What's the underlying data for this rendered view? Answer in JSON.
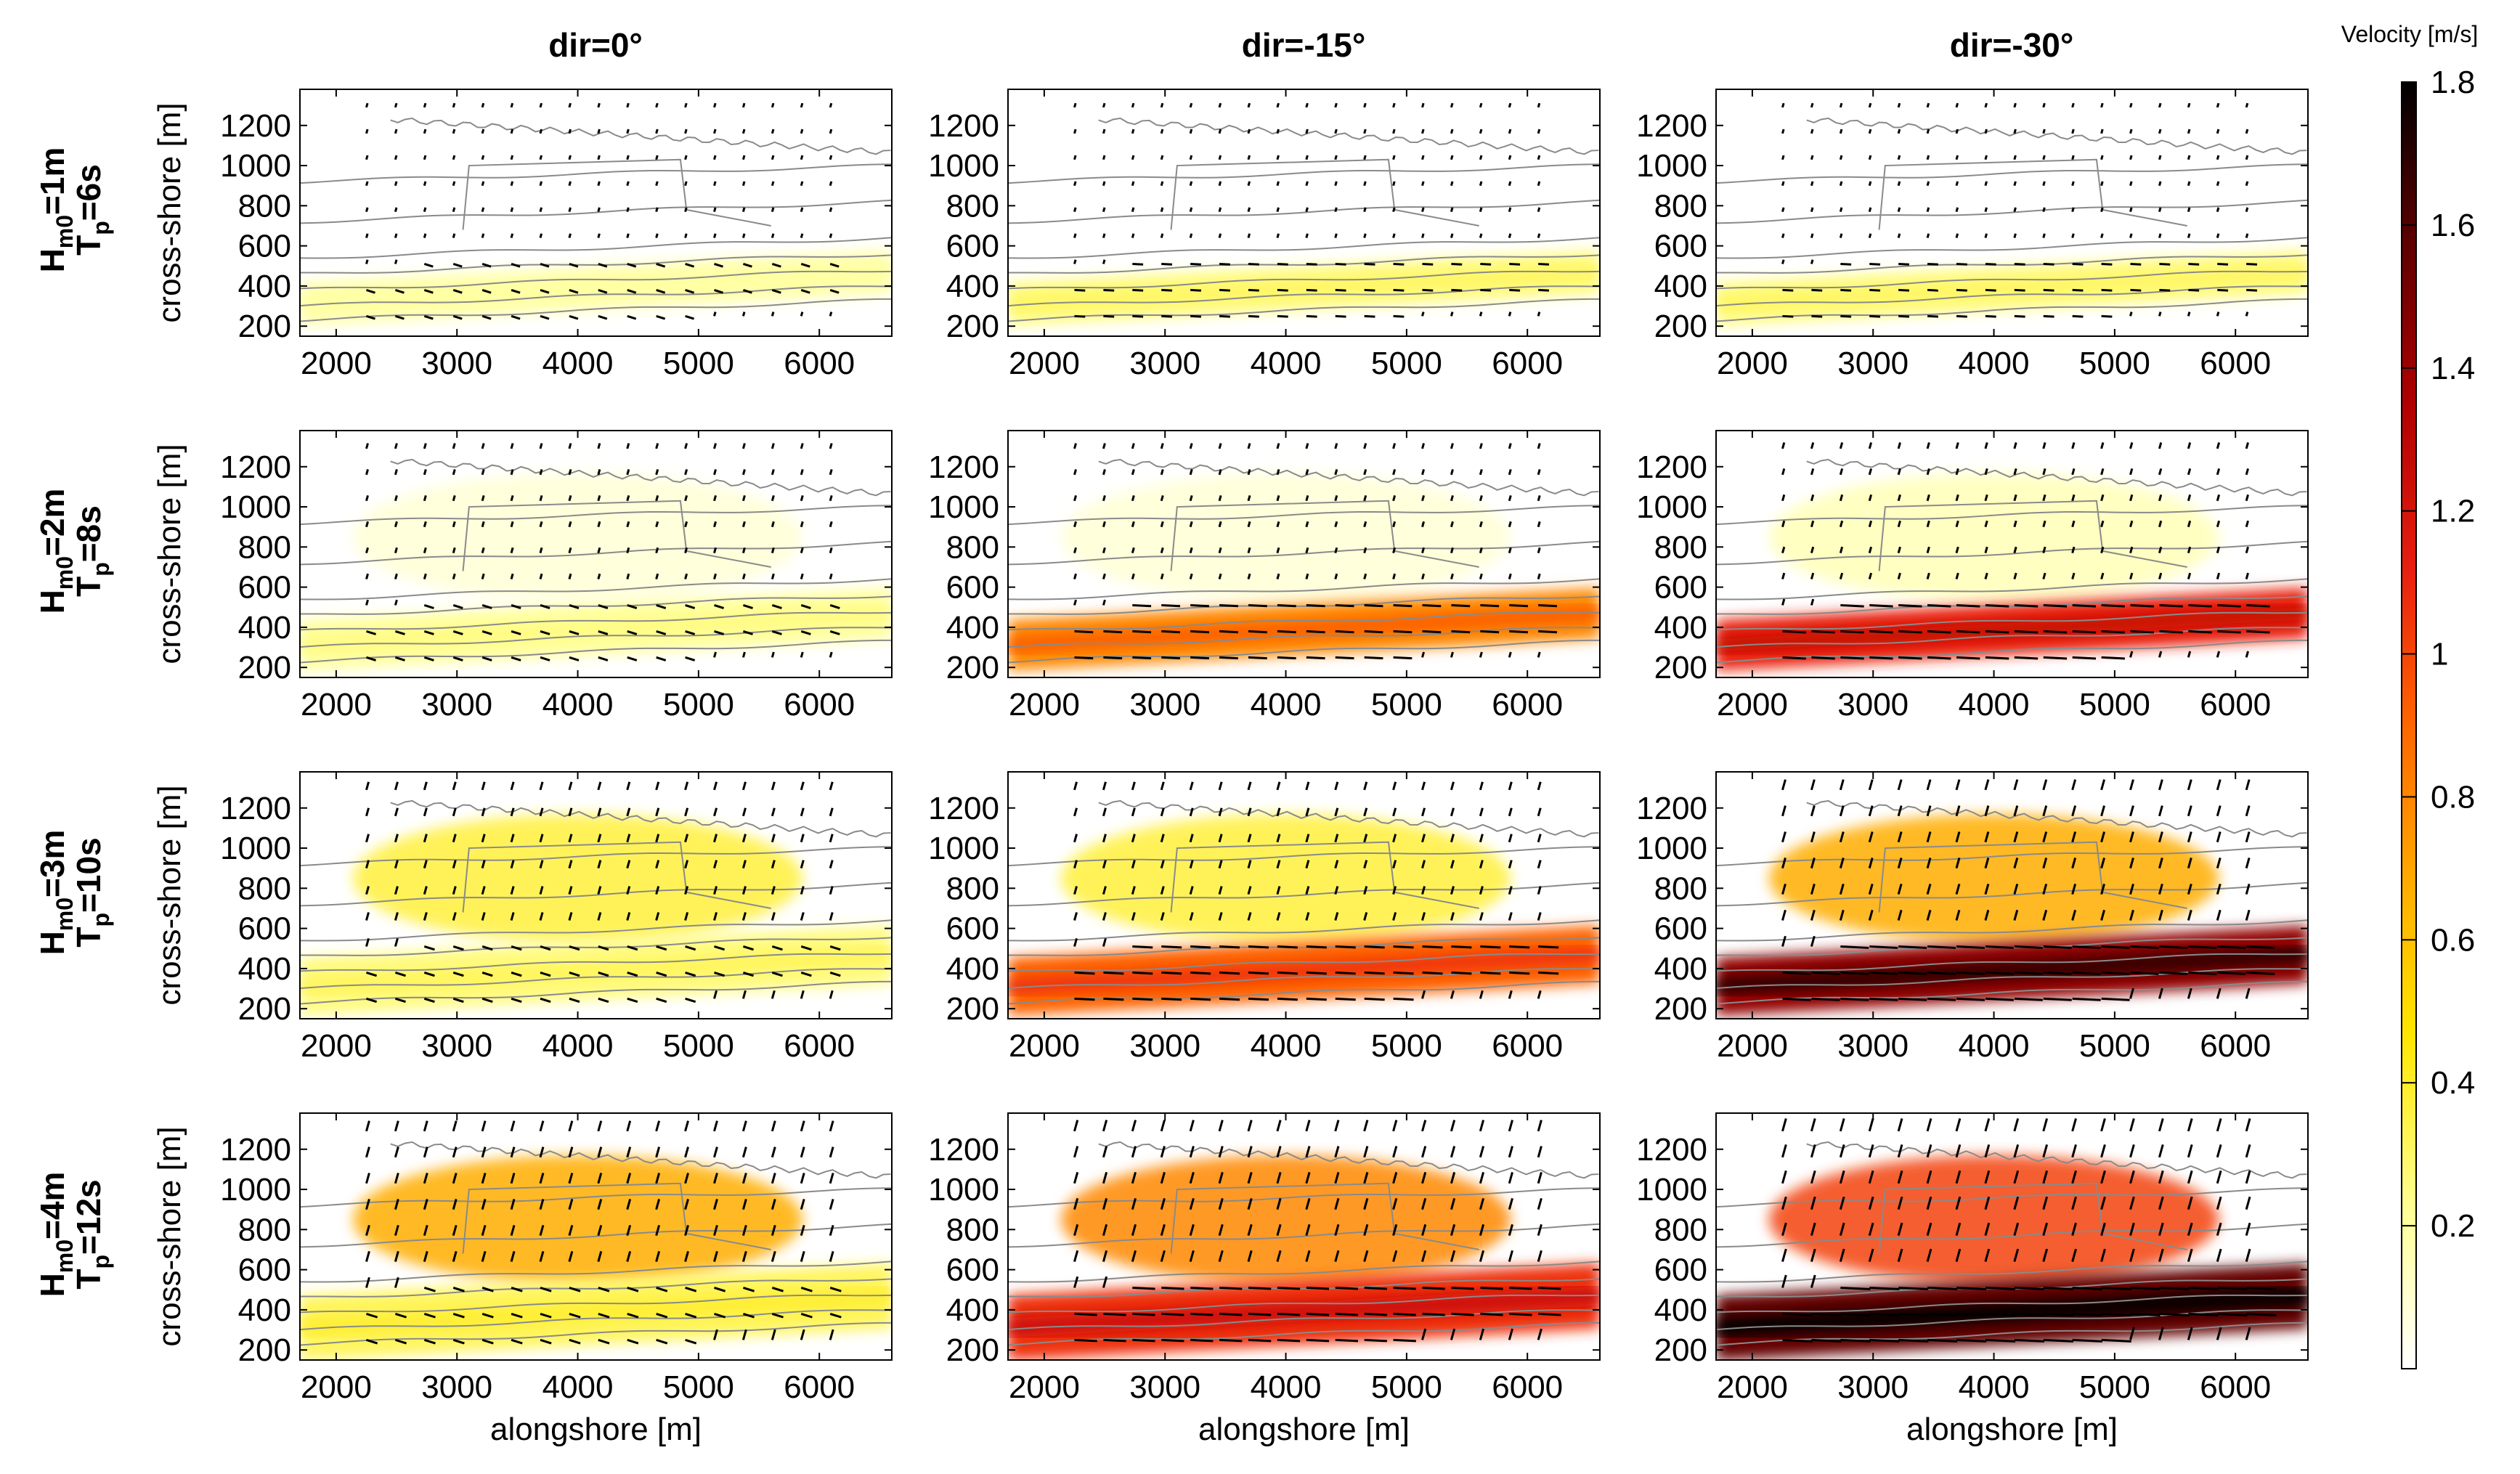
{
  "figure": {
    "column_titles": [
      "dir=0°",
      "dir=-15°",
      "dir=-30°"
    ],
    "row_labels": [
      {
        "h_main": "H",
        "h_sub": "m0",
        "h_val": "=1m",
        "t_main": "T",
        "t_sub": "p",
        "t_val": "=6s"
      },
      {
        "h_main": "H",
        "h_sub": "m0",
        "h_val": "=2m",
        "t_main": "T",
        "t_sub": "p",
        "t_val": "=8s"
      },
      {
        "h_main": "H",
        "h_sub": "m0",
        "h_val": "=3m",
        "t_main": "T",
        "t_sub": "p",
        "t_val": "=10s"
      },
      {
        "h_main": "H",
        "h_sub": "m0",
        "h_val": "=4m",
        "t_main": "T",
        "t_sub": "p",
        "t_val": "=12s"
      }
    ],
    "ylabel": "cross-shore [m]",
    "xlabel": "alongshore [m]"
  },
  "chart_data": {
    "type": "heatmap",
    "description_axes": "12 panels of depth-averaged velocity magnitude with velocity vectors and bathymetry contours",
    "x": {
      "label": "alongshore [m]",
      "range": [
        1700,
        6600
      ],
      "ticks": [
        2000,
        3000,
        4000,
        5000,
        6000
      ]
    },
    "y": {
      "label": "cross-shore [m]",
      "range": [
        150,
        1380
      ],
      "ticks": [
        200,
        400,
        600,
        800,
        1000,
        1200
      ]
    },
    "colorbar": {
      "title": "Velocity [m/s]",
      "range": [
        0,
        1.8
      ],
      "ticks": [
        0.2,
        0.4,
        0.6,
        0.8,
        1,
        1.2,
        1.4,
        1.6,
        1.8
      ],
      "tick_labels": [
        "0.2",
        "0.4",
        "0.6",
        "0.8",
        "1",
        "1.2",
        "1.4",
        "1.6",
        "1.8"
      ],
      "colors": [
        "#ffffff",
        "#ffff99",
        "#ffe600",
        "#ffaa00",
        "#ff6600",
        "#e82010",
        "#b00000",
        "#5a0000",
        "#000000"
      ]
    },
    "panels": [
      {
        "row": 0,
        "col": 0,
        "wave_height_m": 1,
        "period_s": 6,
        "direction_deg": 0,
        "nearshore_current_ms": 0.3,
        "offshore_current_ms": 0.0
      },
      {
        "row": 0,
        "col": 1,
        "wave_height_m": 1,
        "period_s": 6,
        "direction_deg": -15,
        "nearshore_current_ms": 0.4,
        "offshore_current_ms": 0.0
      },
      {
        "row": 0,
        "col": 2,
        "wave_height_m": 1,
        "period_s": 6,
        "direction_deg": -30,
        "nearshore_current_ms": 0.4,
        "offshore_current_ms": 0.0
      },
      {
        "row": 1,
        "col": 0,
        "wave_height_m": 2,
        "period_s": 8,
        "direction_deg": 0,
        "nearshore_current_ms": 0.35,
        "offshore_current_ms": 0.15
      },
      {
        "row": 1,
        "col": 1,
        "wave_height_m": 2,
        "period_s": 8,
        "direction_deg": -15,
        "nearshore_current_ms": 0.9,
        "offshore_current_ms": 0.15
      },
      {
        "row": 1,
        "col": 2,
        "wave_height_m": 2,
        "period_s": 8,
        "direction_deg": -30,
        "nearshore_current_ms": 1.2,
        "offshore_current_ms": 0.25
      },
      {
        "row": 2,
        "col": 0,
        "wave_height_m": 3,
        "period_s": 10,
        "direction_deg": 0,
        "nearshore_current_ms": 0.4,
        "offshore_current_ms": 0.5
      },
      {
        "row": 2,
        "col": 1,
        "wave_height_m": 3,
        "period_s": 10,
        "direction_deg": -15,
        "nearshore_current_ms": 1.0,
        "offshore_current_ms": 0.5
      },
      {
        "row": 2,
        "col": 2,
        "wave_height_m": 3,
        "period_s": 10,
        "direction_deg": -30,
        "nearshore_current_ms": 1.5,
        "offshore_current_ms": 0.8
      },
      {
        "row": 3,
        "col": 0,
        "wave_height_m": 4,
        "period_s": 12,
        "direction_deg": 0,
        "nearshore_current_ms": 0.45,
        "offshore_current_ms": 0.8
      },
      {
        "row": 3,
        "col": 1,
        "wave_height_m": 4,
        "period_s": 12,
        "direction_deg": -15,
        "nearshore_current_ms": 1.15,
        "offshore_current_ms": 0.9
      },
      {
        "row": 3,
        "col": 2,
        "wave_height_m": 4,
        "period_s": 12,
        "direction_deg": -30,
        "nearshore_current_ms": 1.6,
        "offshore_current_ms": 1.1
      }
    ]
  }
}
